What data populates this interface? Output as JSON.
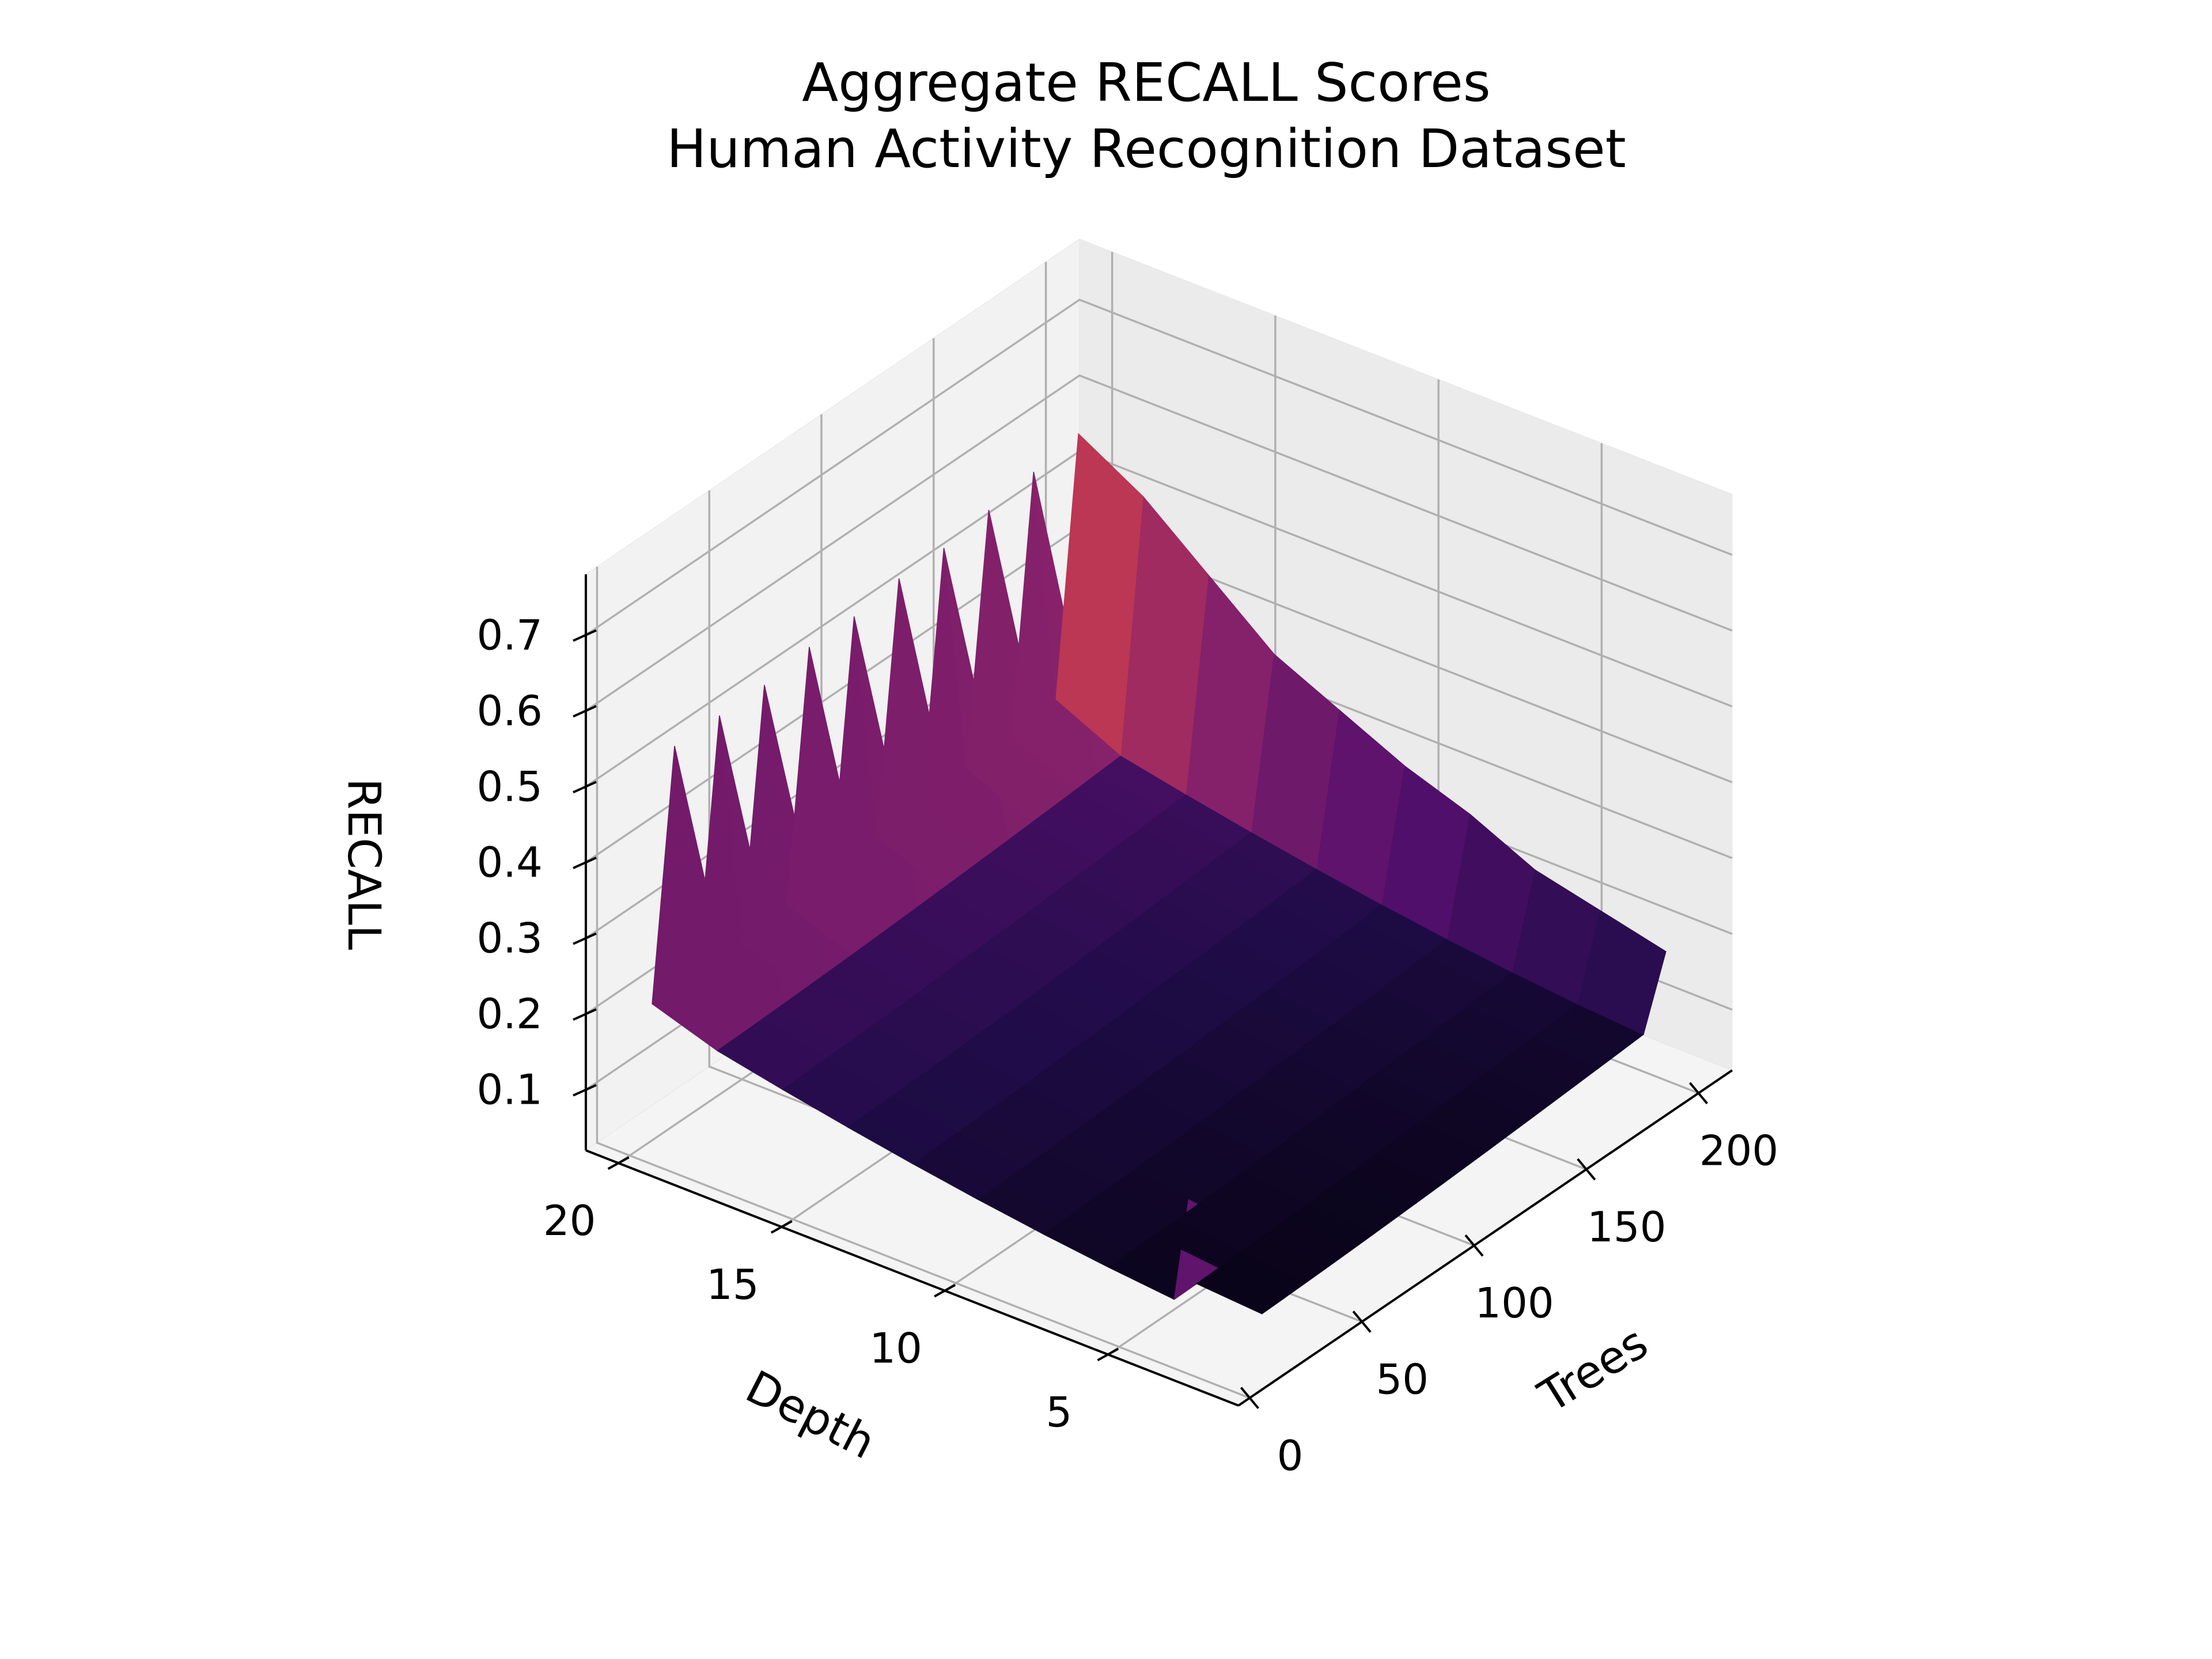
{
  "chart_data": {
    "type": "surface3d",
    "title": "Aggregate RECALL Scores",
    "subtitle": "Human Activity Recognition Dataset",
    "xlabel": "Trees",
    "ylabel": "Depth",
    "zlabel": "RECALL",
    "x_ticks": [
      "0",
      "50",
      "100",
      "150",
      "200"
    ],
    "y_ticks": [
      "5",
      "10",
      "15",
      "20"
    ],
    "z_ticks": [
      "0.1",
      "0.2",
      "0.3",
      "0.4",
      "0.5",
      "0.6",
      "0.7"
    ],
    "xlim": [
      -5,
      215
    ],
    "ylim": [
      1,
      21
    ],
    "zlim": [
      0.02,
      0.78
    ],
    "colormap": "inferno",
    "grid": true,
    "trees": [
      10,
      20,
      30,
      40,
      50,
      60,
      70,
      80,
      90,
      100,
      110,
      120,
      130,
      140,
      150,
      160,
      170,
      180,
      190,
      200
    ],
    "depth": [
      2,
      4,
      6,
      8,
      10,
      12,
      14,
      16,
      18,
      20
    ],
    "recall_depth_20_by_trees": [
      0.2,
      0.52,
      0.2,
      0.52,
      0.2,
      0.52,
      0.21,
      0.53,
      0.21,
      0.53,
      0.22,
      0.54,
      0.22,
      0.54,
      0.23,
      0.55,
      0.23,
      0.56,
      0.24,
      0.57
    ],
    "recall_trees_200_by_depth": [
      0.19,
      0.21,
      0.23,
      0.27,
      0.3,
      0.34,
      0.38,
      0.45,
      0.52,
      0.57
    ],
    "peak": {
      "trees": 10,
      "depth": 2,
      "recall": 0.71
    }
  }
}
